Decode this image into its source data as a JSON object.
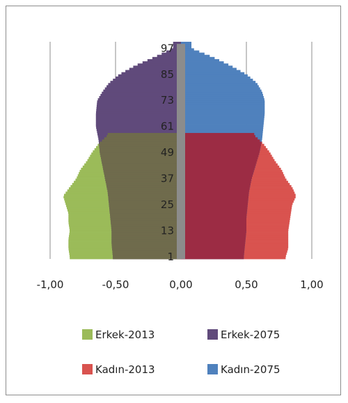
{
  "chart_data": {
    "type": "bar",
    "orientation": "horizontal",
    "subtype": "population-pyramid",
    "title": "",
    "xlabel": "",
    "ylabel": "",
    "xlim": [
      -1.0,
      1.0
    ],
    "ylim": [
      0,
      100
    ],
    "x_ticks": [
      "-1,00",
      "-0,50",
      "0,00",
      "0,50",
      "1,00"
    ],
    "y_ticks": [
      "1",
      "13",
      "25",
      "37",
      "49",
      "61",
      "73",
      "85",
      "97"
    ],
    "legend_position": "bottom",
    "grid": "vertical-major",
    "colors": {
      "erkek_2013": "#9bbb59",
      "erkek_2075": "#604a7b",
      "kadin_2013": "#d9534f",
      "kadin_2075": "#4f81bd",
      "overlap_male": "#6f6b4c",
      "overlap_female": "#9c2c44",
      "axis_bar": "#8c8c8c"
    },
    "series": [
      {
        "name": "Erkek-2013",
        "side": "left",
        "ages": [
          1,
          5,
          9,
          13,
          17,
          21,
          25,
          29,
          33,
          37,
          41,
          45,
          49,
          53,
          57
        ],
        "values": [
          -0.85,
          -0.86,
          -0.86,
          -0.85,
          -0.86,
          -0.86,
          -0.88,
          -0.9,
          -0.85,
          -0.8,
          -0.77,
          -0.72,
          -0.68,
          -0.63,
          -0.56
        ]
      },
      {
        "name": "Erkek-2075",
        "side": "left",
        "ages": [
          1,
          7,
          13,
          19,
          25,
          31,
          37,
          43,
          49,
          55,
          61,
          67,
          73,
          77,
          81,
          85,
          89,
          93,
          97
        ],
        "values": [
          -0.52,
          -0.53,
          -0.53,
          -0.54,
          -0.55,
          -0.56,
          -0.58,
          -0.6,
          -0.62,
          -0.63,
          -0.65,
          -0.65,
          -0.64,
          -0.6,
          -0.55,
          -0.47,
          -0.35,
          -0.2,
          -0.06
        ]
      },
      {
        "name": "Kadın-2013",
        "side": "right",
        "ages": [
          1,
          5,
          9,
          13,
          17,
          21,
          25,
          29,
          33,
          37,
          41,
          45,
          49,
          53,
          57
        ],
        "values": [
          0.8,
          0.82,
          0.82,
          0.82,
          0.83,
          0.84,
          0.85,
          0.88,
          0.85,
          0.8,
          0.77,
          0.72,
          0.68,
          0.63,
          0.56
        ]
      },
      {
        "name": "Kadın-2075",
        "side": "right",
        "ages": [
          1,
          7,
          13,
          19,
          25,
          31,
          37,
          43,
          49,
          55,
          61,
          67,
          73,
          77,
          81,
          85,
          89,
          93,
          97
        ],
        "values": [
          0.48,
          0.49,
          0.5,
          0.5,
          0.51,
          0.52,
          0.54,
          0.57,
          0.6,
          0.62,
          0.63,
          0.64,
          0.64,
          0.62,
          0.58,
          0.5,
          0.38,
          0.24,
          0.08
        ]
      }
    ],
    "legend": [
      {
        "label": "Erkek-2013",
        "color": "#9bbb59"
      },
      {
        "label": "Erkek-2075",
        "color": "#604a7b"
      },
      {
        "label": "Kadın-2013",
        "color": "#d9534f"
      },
      {
        "label": "Kadın-2075",
        "color": "#4f81bd"
      }
    ]
  }
}
